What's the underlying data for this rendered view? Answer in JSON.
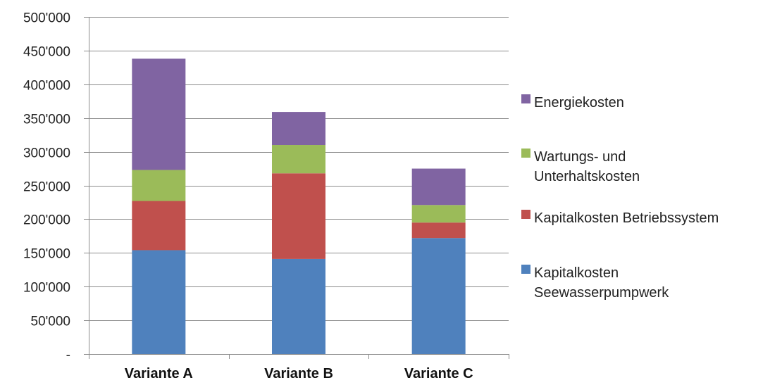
{
  "chart_data": {
    "type": "bar",
    "stacked": true,
    "categories": [
      "Variante A",
      "Variante B",
      "Variante C"
    ],
    "series": [
      {
        "name": "Kapitalkosten Seewasserpumpwerk",
        "legend_lines": [
          "Kapitalkosten",
          "Seewasserpumpwerk"
        ],
        "color": "#4F81BD",
        "values": [
          154000,
          141000,
          172000
        ]
      },
      {
        "name": "Kapitalkosten Betriebssystem",
        "legend_lines": [
          "Kapitalkosten Betriebssystem"
        ],
        "color": "#C0504D",
        "values": [
          73000,
          127000,
          23000
        ]
      },
      {
        "name": "Wartungs- und Unterhaltskosten",
        "legend_lines": [
          "Wartungs- und",
          "Unterhaltskosten"
        ],
        "color": "#9BBB59",
        "values": [
          46000,
          42000,
          26000
        ]
      },
      {
        "name": "Energiekosten",
        "legend_lines": [
          "Energiekosten"
        ],
        "color": "#8064A2",
        "values": [
          165000,
          49000,
          54000
        ]
      }
    ],
    "ylim": [
      0,
      500000
    ],
    "yticks": [
      0,
      50000,
      100000,
      150000,
      200000,
      250000,
      300000,
      350000,
      400000,
      450000,
      500000
    ],
    "ytick_labels": [
      "-",
      "50'000",
      "100'000",
      "150'000",
      "200'000",
      "250'000",
      "300'000",
      "350'000",
      "400'000",
      "450'000",
      "500'000"
    ],
    "grid": true,
    "legend": "right",
    "title": "",
    "xlabel": "",
    "ylabel": ""
  }
}
